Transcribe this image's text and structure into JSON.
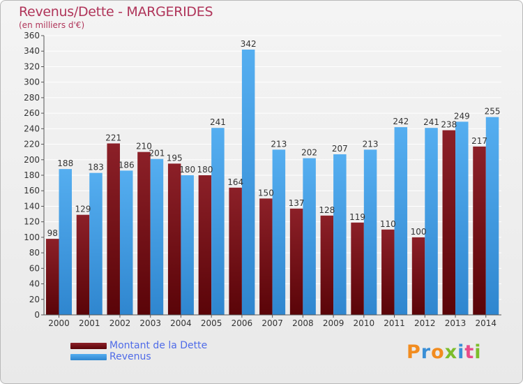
{
  "title": "Revenus/Dette - MARGERIDES",
  "subtitle": "(en milliers d'€)",
  "colors": {
    "dette": "#7a1218",
    "revenus": "#3d99e3",
    "title": "#b0355a",
    "legend_text": "#4f6be8"
  },
  "chart_data": {
    "type": "bar",
    "title": "Revenus/Dette - MARGERIDES",
    "ylabel": "(en milliers d'€)",
    "xlabel": "",
    "categories": [
      "2000",
      "2001",
      "2002",
      "2003",
      "2004",
      "2005",
      "2006",
      "2007",
      "2008",
      "2009",
      "2010",
      "2011",
      "2012",
      "2013",
      "2014"
    ],
    "series": [
      {
        "name": "Montant de la Dette",
        "values": [
          98,
          129,
          221,
          210,
          195,
          180,
          164,
          150,
          137,
          128,
          119,
          110,
          100,
          238,
          217
        ]
      },
      {
        "name": "Revenus",
        "values": [
          188,
          183,
          186,
          201,
          180,
          241,
          342,
          213,
          202,
          207,
          213,
          242,
          241,
          249,
          255
        ]
      }
    ],
    "ylim": [
      0,
      360
    ],
    "yticks": [
      0,
      20,
      40,
      60,
      80,
      100,
      120,
      140,
      160,
      180,
      200,
      220,
      240,
      260,
      280,
      300,
      320,
      340,
      360
    ],
    "grid": true,
    "legend_position": "bottom-left"
  },
  "legend": {
    "items": [
      {
        "label": "Montant de la Dette",
        "icon": "dark-red-gradient-swatch"
      },
      {
        "label": "Revenus",
        "icon": "blue-gradient-swatch"
      }
    ]
  },
  "logo": {
    "letters": [
      "P",
      "r",
      "o",
      "x",
      "i",
      "t",
      "i"
    ],
    "colors": [
      "#f28c1f",
      "#3a8fd6",
      "#f28c1f",
      "#7cbd2a",
      "#3a8fd6",
      "#e84b8a",
      "#7cbd2a"
    ]
  }
}
